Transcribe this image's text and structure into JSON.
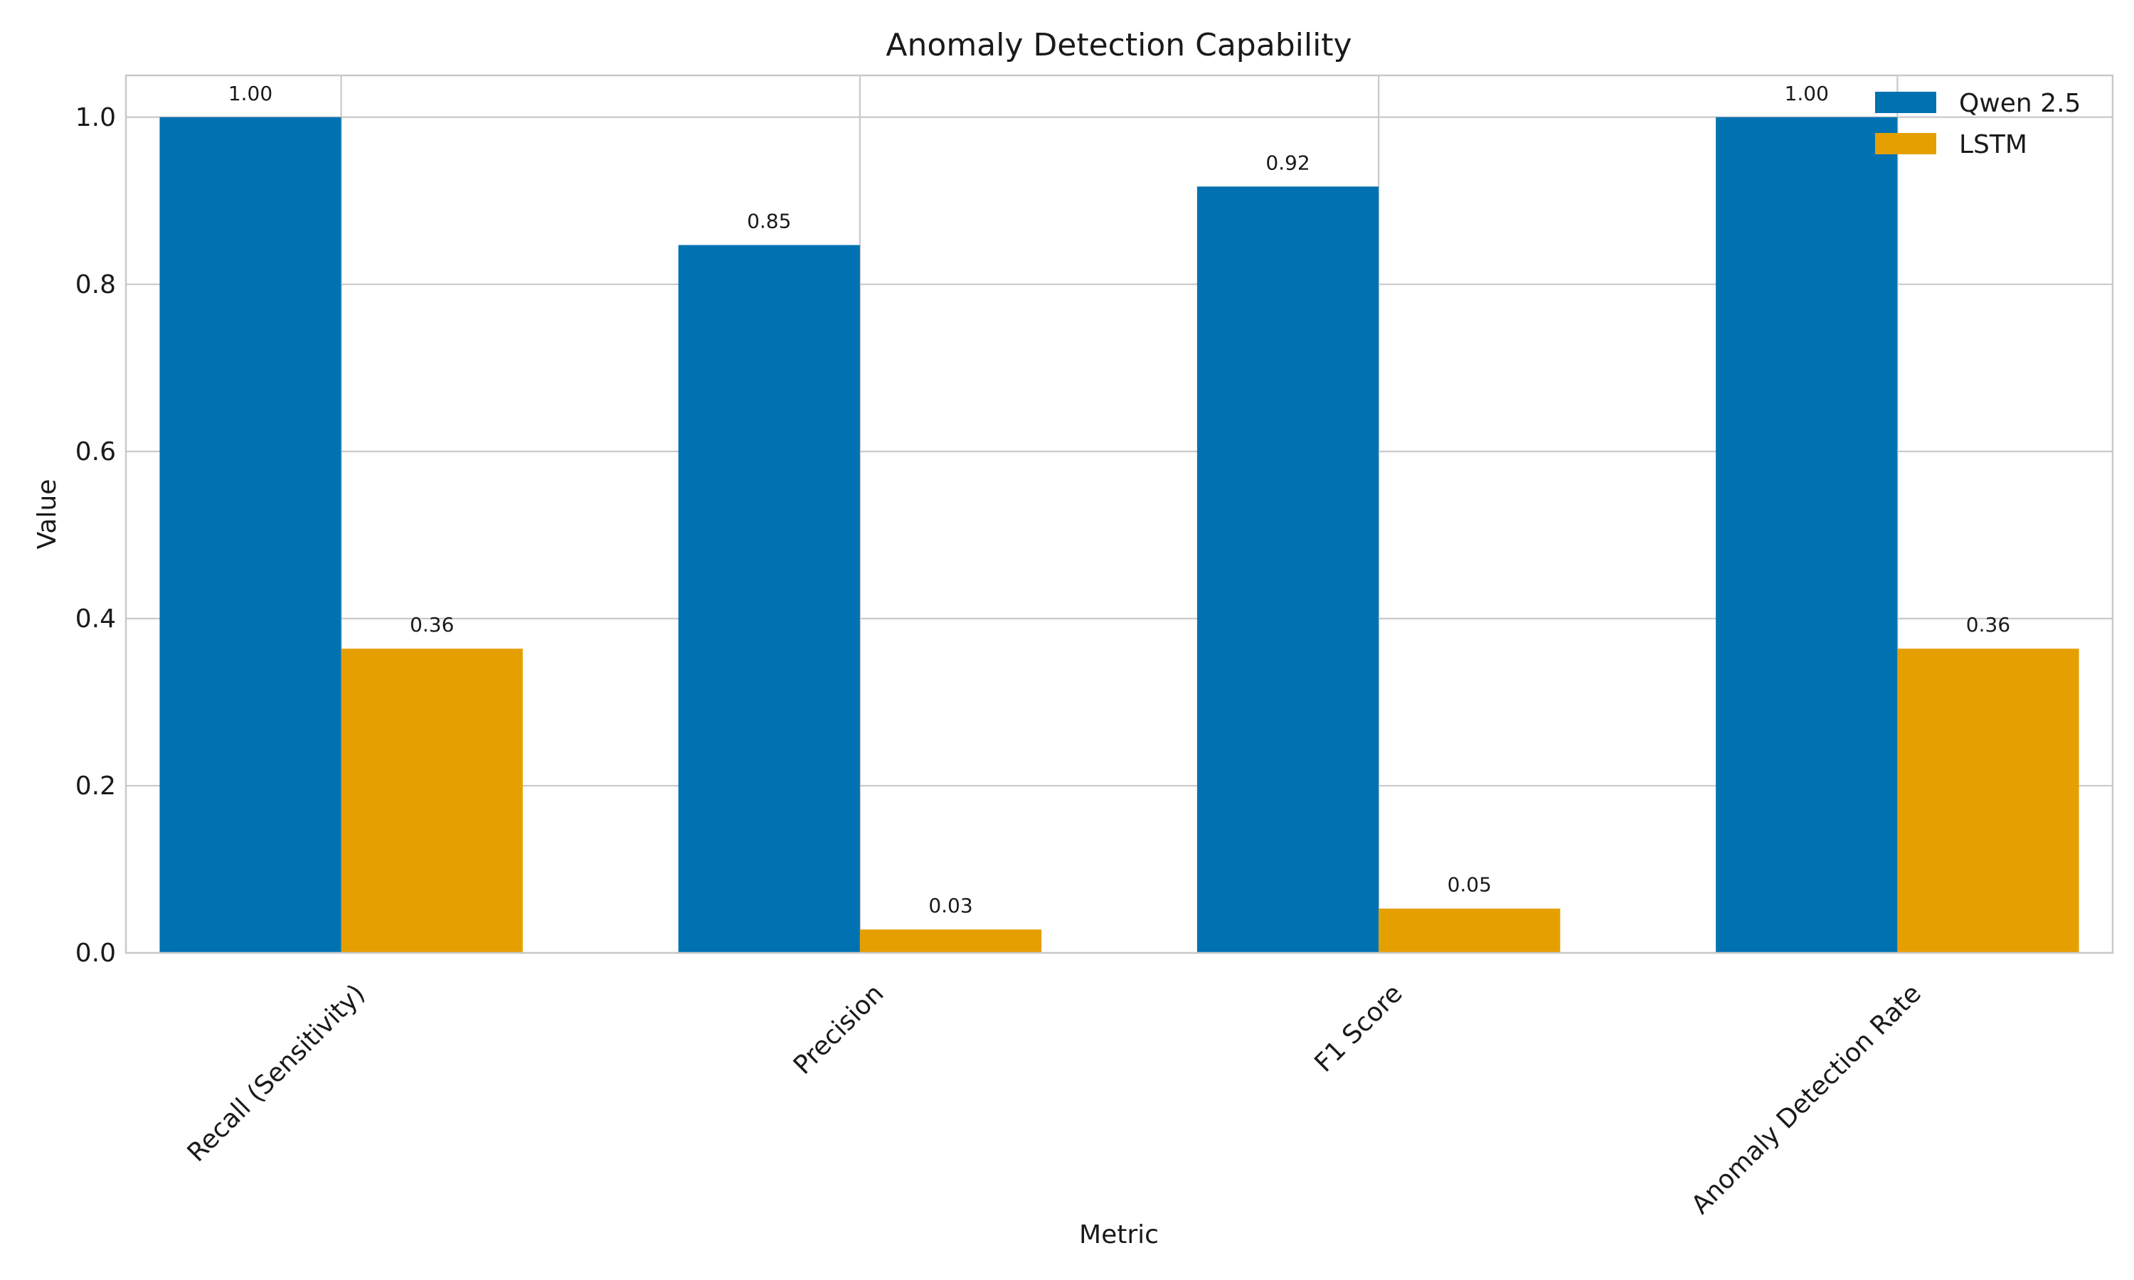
{
  "chart_data": {
    "type": "bar",
    "title": "Anomaly Detection Capability",
    "xlabel": "Metric",
    "ylabel": "Value",
    "categories": [
      "Recall (Sensitivity)",
      "Precision",
      "F1 Score",
      "Anomaly Detection Rate"
    ],
    "series": [
      {
        "name": "Qwen 2.5",
        "color": "#0072B2",
        "values": [
          1.0,
          0.847,
          0.917,
          1.0
        ],
        "labels": [
          "1.00",
          "0.85",
          "0.92",
          "1.00"
        ]
      },
      {
        "name": "LSTM",
        "color": "#E69F00",
        "values": [
          0.364,
          0.028,
          0.053,
          0.364
        ],
        "labels": [
          "0.36",
          "0.03",
          "0.05",
          "0.36"
        ]
      }
    ],
    "ylim": [
      0,
      1.05
    ],
    "yticks": [
      0.0,
      0.2,
      0.4,
      0.6,
      0.8,
      1.0
    ],
    "ytick_labels": [
      "0.0",
      "0.2",
      "0.4",
      "0.6",
      "0.8",
      "1.0"
    ],
    "grid": true,
    "legend_position": "top-right"
  }
}
